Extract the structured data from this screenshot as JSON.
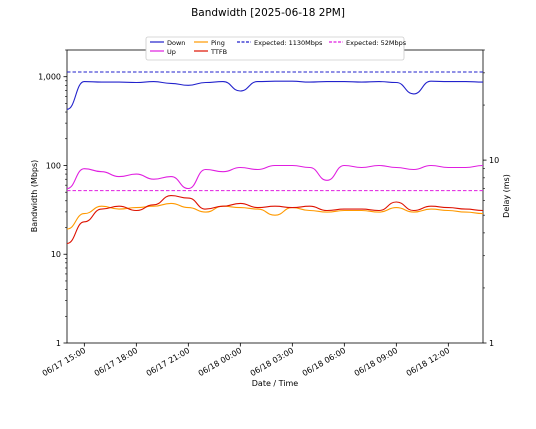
{
  "chart_data": {
    "type": "line",
    "title": "Bandwidth [2025-06-18 2PM]",
    "xlabel": "Date / Time",
    "ylabel": "Bandwidth (Mbps)",
    "y2label": "Delay (ms)",
    "y_scale": "log",
    "ylim": [
      1,
      2000
    ],
    "y2_scale": "log",
    "y2lim": [
      1,
      40
    ],
    "xlim": [
      "2025-06-17 14:00",
      "2025-06-18 14:00"
    ],
    "x_tick_labels": [
      "06/17 15:00",
      "06/17 18:00",
      "06/17 21:00",
      "06/18 00:00",
      "06/18 03:00",
      "06/18 06:00",
      "06/18 09:00",
      "06/18 12:00"
    ],
    "y_tick_labels": [
      "1",
      "10",
      "100",
      "1,000"
    ],
    "y2_tick_labels": [
      "1",
      "10"
    ],
    "legend_position": "top-center",
    "legend": [
      "Down",
      "Up",
      "Ping",
      "TTFB",
      "Expected: 1130Mbps",
      "Expected: 52Mbps"
    ],
    "colors": {
      "down": "#2222cc",
      "up": "#e01ee0",
      "ping": "#ff9900",
      "ttfb": "#dd1100",
      "expected_down": "#2222cc",
      "expected_up": "#e01ee0"
    },
    "reference_lines": [
      {
        "name": "Expected: 1130Mbps",
        "value": 1130,
        "axis": "left",
        "style": "dashed"
      },
      {
        "name": "Expected: 52Mbps",
        "value": 52,
        "axis": "left",
        "style": "dashed"
      }
    ],
    "series": [
      {
        "name": "Down",
        "axis": "left",
        "x": [
          "2025-06-17 14:00",
          "2025-06-17 15:00",
          "2025-06-17 16:00",
          "2025-06-17 17:00",
          "2025-06-17 18:00",
          "2025-06-17 19:00",
          "2025-06-17 20:00",
          "2025-06-17 21:00",
          "2025-06-17 22:00",
          "2025-06-17 23:00",
          "2025-06-18 00:00",
          "2025-06-18 01:00",
          "2025-06-18 02:00",
          "2025-06-18 03:00",
          "2025-06-18 04:00",
          "2025-06-18 05:00",
          "2025-06-18 06:00",
          "2025-06-18 07:00",
          "2025-06-18 08:00",
          "2025-06-18 09:00",
          "2025-06-18 10:00",
          "2025-06-18 11:00",
          "2025-06-18 12:00",
          "2025-06-18 13:00",
          "2025-06-18 14:00"
        ],
        "values": [
          430,
          880,
          870,
          870,
          860,
          880,
          840,
          800,
          860,
          880,
          690,
          880,
          890,
          890,
          870,
          880,
          880,
          870,
          880,
          860,
          640,
          890,
          880,
          880,
          870
        ]
      },
      {
        "name": "Up",
        "axis": "left",
        "x": [
          "2025-06-17 14:00",
          "2025-06-17 15:00",
          "2025-06-17 16:00",
          "2025-06-17 17:00",
          "2025-06-17 18:00",
          "2025-06-17 19:00",
          "2025-06-17 20:00",
          "2025-06-17 21:00",
          "2025-06-17 22:00",
          "2025-06-17 23:00",
          "2025-06-18 00:00",
          "2025-06-18 01:00",
          "2025-06-18 02:00",
          "2025-06-18 03:00",
          "2025-06-18 04:00",
          "2025-06-18 05:00",
          "2025-06-18 06:00",
          "2025-06-18 07:00",
          "2025-06-18 08:00",
          "2025-06-18 09:00",
          "2025-06-18 10:00",
          "2025-06-18 11:00",
          "2025-06-18 12:00",
          "2025-06-18 13:00",
          "2025-06-18 14:00"
        ],
        "values": [
          55,
          92,
          85,
          75,
          80,
          70,
          75,
          55,
          90,
          85,
          95,
          90,
          100,
          100,
          95,
          68,
          100,
          95,
          100,
          95,
          90,
          100,
          95,
          95,
          100
        ]
      },
      {
        "name": "Ping",
        "axis": "right",
        "x": [
          "2025-06-17 14:00",
          "2025-06-17 15:00",
          "2025-06-17 16:00",
          "2025-06-17 17:00",
          "2025-06-17 18:00",
          "2025-06-17 19:00",
          "2025-06-17 20:00",
          "2025-06-17 21:00",
          "2025-06-17 22:00",
          "2025-06-17 23:00",
          "2025-06-18 00:00",
          "2025-06-18 01:00",
          "2025-06-18 02:00",
          "2025-06-18 03:00",
          "2025-06-18 04:00",
          "2025-06-18 05:00",
          "2025-06-18 06:00",
          "2025-06-18 07:00",
          "2025-06-18 08:00",
          "2025-06-18 09:00",
          "2025-06-18 10:00",
          "2025-06-18 11:00",
          "2025-06-18 12:00",
          "2025-06-18 13:00",
          "2025-06-18 14:00"
        ],
        "values": [
          4.2,
          5.1,
          5.6,
          5.4,
          5.5,
          5.6,
          5.8,
          5.5,
          5.2,
          5.6,
          5.5,
          5.4,
          5.0,
          5.5,
          5.3,
          5.2,
          5.3,
          5.3,
          5.2,
          5.5,
          5.2,
          5.4,
          5.3,
          5.2,
          5.1
        ]
      },
      {
        "name": "TTFB",
        "axis": "right",
        "x": [
          "2025-06-17 14:00",
          "2025-06-17 15:00",
          "2025-06-17 16:00",
          "2025-06-17 17:00",
          "2025-06-17 18:00",
          "2025-06-17 19:00",
          "2025-06-17 20:00",
          "2025-06-17 21:00",
          "2025-06-17 22:00",
          "2025-06-17 23:00",
          "2025-06-18 00:00",
          "2025-06-18 01:00",
          "2025-06-18 02:00",
          "2025-06-18 03:00",
          "2025-06-18 04:00",
          "2025-06-18 05:00",
          "2025-06-18 06:00",
          "2025-06-18 07:00",
          "2025-06-18 08:00",
          "2025-06-18 09:00",
          "2025-06-18 10:00",
          "2025-06-18 11:00",
          "2025-06-18 12:00",
          "2025-06-18 13:00",
          "2025-06-18 14:00"
        ],
        "values": [
          3.5,
          4.6,
          5.4,
          5.6,
          5.3,
          5.7,
          6.4,
          6.2,
          5.4,
          5.6,
          5.8,
          5.5,
          5.6,
          5.5,
          5.6,
          5.3,
          5.4,
          5.4,
          5.3,
          5.9,
          5.3,
          5.6,
          5.5,
          5.4,
          5.3
        ]
      }
    ]
  }
}
